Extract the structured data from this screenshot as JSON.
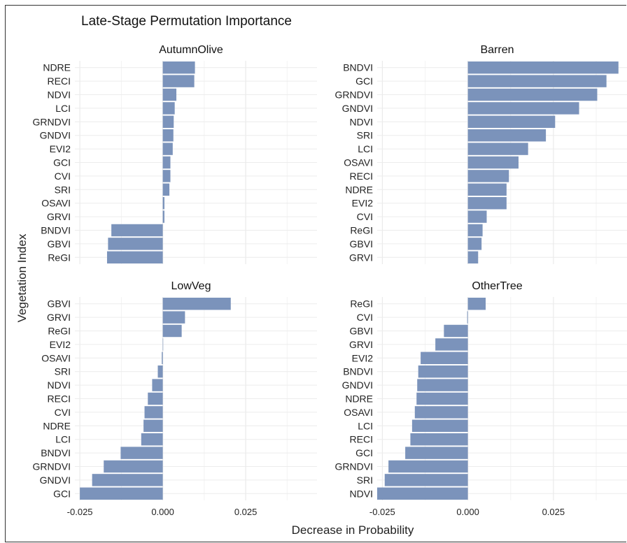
{
  "chart_data": {
    "type": "bar",
    "orientation": "horizontal",
    "title": "Late-Stage Permutation Importance",
    "xlabel": "Decrease in Probability",
    "ylabel": "Vegetation Index",
    "xlim": [
      -0.0265,
      0.0465
    ],
    "xticks": [
      -0.025,
      0.0,
      0.025
    ],
    "xtick_labels": [
      "-0.025",
      "0.000",
      "0.025"
    ],
    "grid": true,
    "bar_color": "#7b93bb",
    "panels": [
      {
        "name": "AutumnOlive",
        "categories": [
          "NDRE",
          "RECI",
          "NDVI",
          "LCI",
          "GRNDVI",
          "GNDVI",
          "EVI2",
          "GCI",
          "CVI",
          "SRI",
          "OSAVI",
          "GRVI",
          "BNDVI",
          "GBVI",
          "ReGI"
        ],
        "values": [
          0.0097,
          0.0095,
          0.0041,
          0.0036,
          0.0033,
          0.0032,
          0.003,
          0.0023,
          0.0023,
          0.002,
          0.0005,
          0.0005,
          -0.0155,
          -0.0165,
          -0.0168
        ]
      },
      {
        "name": "Barren",
        "categories": [
          "BNDVI",
          "GCI",
          "GRNDVI",
          "GNDVI",
          "NDVI",
          "SRI",
          "LCI",
          "OSAVI",
          "RECI",
          "NDRE",
          "EVI2",
          "CVI",
          "ReGI",
          "GBVI",
          "GRVI"
        ],
        "values": [
          0.044,
          0.0405,
          0.0378,
          0.0325,
          0.0255,
          0.0228,
          0.0176,
          0.0148,
          0.012,
          0.0113,
          0.0113,
          0.0055,
          0.0043,
          0.004,
          0.003
        ]
      },
      {
        "name": "LowVeg",
        "categories": [
          "GBVI",
          "GRVI",
          "ReGI",
          "EVI2",
          "OSAVI",
          "SRI",
          "NDVI",
          "RECI",
          "CVI",
          "NDRE",
          "LCI",
          "BNDVI",
          "GRNDVI",
          "GNDVI",
          "GCI"
        ],
        "values": [
          0.0205,
          0.0067,
          0.0057,
          0.0,
          -0.0003,
          -0.0015,
          -0.0032,
          -0.0045,
          -0.0055,
          -0.0058,
          -0.0065,
          -0.0127,
          -0.0178,
          -0.0213,
          -0.025
        ]
      },
      {
        "name": "OtherTree",
        "categories": [
          "ReGI",
          "CVI",
          "GBVI",
          "GRVI",
          "EVI2",
          "BNDVI",
          "GNDVI",
          "NDRE",
          "OSAVI",
          "LCI",
          "RECI",
          "GCI",
          "GRNDVI",
          "SRI",
          "NDVI"
        ],
        "values": [
          0.0052,
          -0.0002,
          -0.007,
          -0.0095,
          -0.0138,
          -0.0145,
          -0.0148,
          -0.015,
          -0.0155,
          -0.0163,
          -0.0168,
          -0.0183,
          -0.0232,
          -0.0243,
          -0.0265
        ]
      }
    ]
  }
}
